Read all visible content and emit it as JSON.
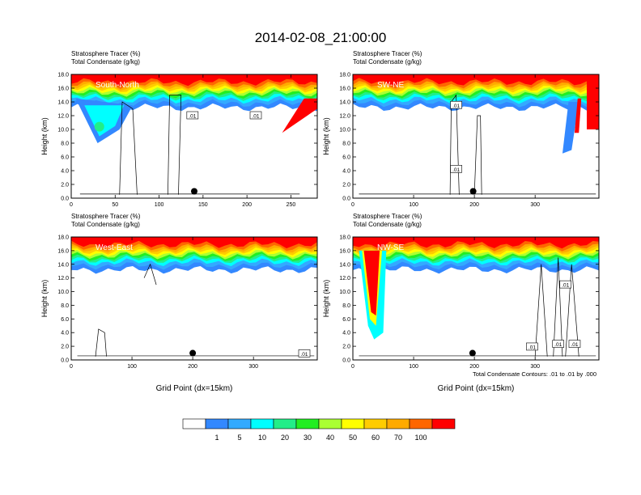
{
  "title": "2014-02-08_21:00:00",
  "colorbar": {
    "colors": [
      "#ffffff",
      "#3388ff",
      "#33aaff",
      "#00ffff",
      "#22ee88",
      "#22ee22",
      "#aaff33",
      "#ffff00",
      "#ffcc00",
      "#ffaa00",
      "#ff6600",
      "#ff0000"
    ],
    "labels": [
      "1",
      "5",
      "10",
      "20",
      "30",
      "40",
      "50",
      "60",
      "70",
      "100"
    ]
  },
  "footnote": "Total Condensate Contours: .01 to .01 by .000",
  "chart_data": [
    {
      "type": "heatmap",
      "label_top_1": "Stratosphere Tracer   (%)",
      "label_top_2": "Total Condensate   (g/kg)",
      "panel_label": "South-North",
      "ylabel": "Height (km)",
      "xlabel": "",
      "x_ticks": [
        "0",
        "50",
        "100",
        "150",
        "200",
        "250"
      ],
      "y_ticks": [
        "0.0",
        "2.0",
        "4.0",
        "6.0",
        "8.0",
        "10.0",
        "12.0",
        "14.0",
        "16.0",
        "18.0"
      ],
      "xlim": [
        0,
        280
      ],
      "ylim": [
        0,
        18
      ],
      "marker": {
        "x": 140,
        "y": 1.0
      },
      "contour_labels": [
        ".01",
        ".01"
      ]
    },
    {
      "type": "heatmap",
      "label_top_1": "Stratosphere Tracer   (%)",
      "label_top_2": "Total Condensate   (g/kg)",
      "panel_label": "SW-NE",
      "ylabel": "Height (km)",
      "xlabel": "",
      "x_ticks": [
        "0",
        "100",
        "200",
        "300"
      ],
      "y_ticks": [
        "0.0",
        "2.0",
        "4.0",
        "6.0",
        "8.0",
        "10.0",
        "12.0",
        "14.0",
        "16.0",
        "18.0"
      ],
      "xlim": [
        0,
        405
      ],
      "ylim": [
        0,
        18
      ],
      "marker": {
        "x": 198,
        "y": 1.0
      },
      "contour_labels": [
        ".01",
        ".01"
      ]
    },
    {
      "type": "heatmap",
      "label_top_1": "Stratosphere Tracer   (%)",
      "label_top_2": "Total Condensate   (g/kg)",
      "panel_label": "West-East",
      "ylabel": "Height (km)",
      "xlabel": "Grid Point (dx=15km)",
      "x_ticks": [
        "0",
        "100",
        "200",
        "300"
      ],
      "y_ticks": [
        "0.0",
        "2.0",
        "4.0",
        "6.0",
        "8.0",
        "10.0",
        "12.0",
        "14.0",
        "16.0",
        "18.0"
      ],
      "xlim": [
        0,
        405
      ],
      "ylim": [
        0,
        18
      ],
      "marker": {
        "x": 200,
        "y": 1.0
      },
      "contour_labels": [
        ".01"
      ]
    },
    {
      "type": "heatmap",
      "label_top_1": "Stratosphere Tracer   (%)",
      "label_top_2": "Total Condensate   (g/kg)",
      "panel_label": "NW-SE",
      "ylabel": "Height (km)",
      "xlabel": "Grid Point (dx=15km)",
      "x_ticks": [
        "0",
        "100",
        "200",
        "300"
      ],
      "y_ticks": [
        "0.0",
        "2.0",
        "4.0",
        "6.0",
        "8.0",
        "10.0",
        "12.0",
        "14.0",
        "16.0",
        "18.0"
      ],
      "xlim": [
        0,
        405
      ],
      "ylim": [
        0,
        18
      ],
      "marker": {
        "x": 197,
        "y": 1.0
      },
      "contour_labels": [
        ".01",
        ".01",
        ".01",
        ".01"
      ]
    }
  ]
}
